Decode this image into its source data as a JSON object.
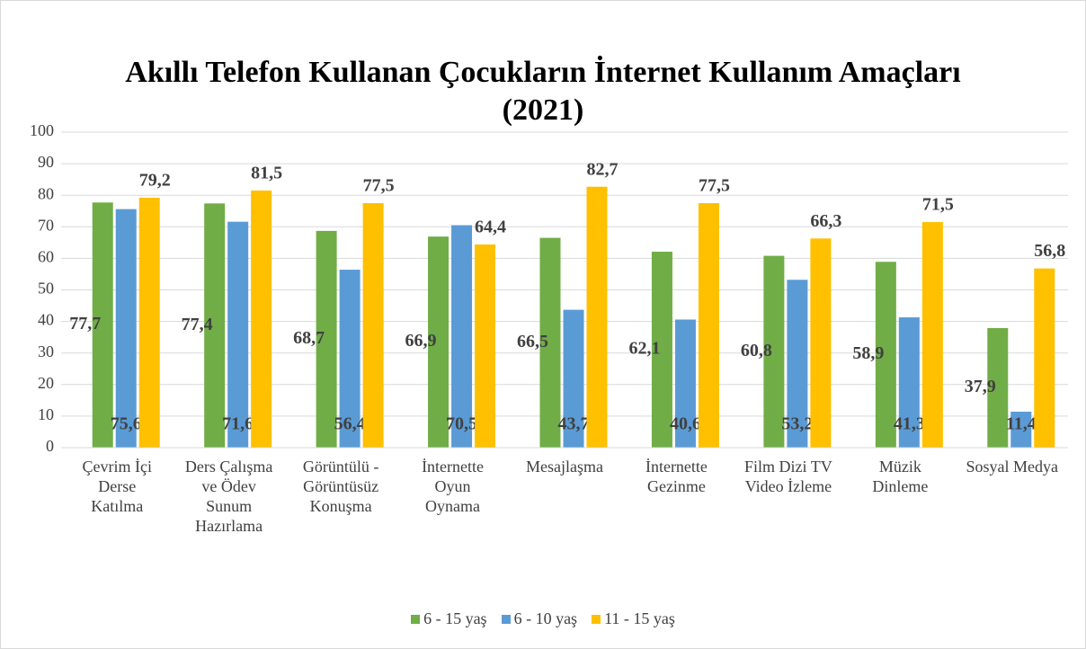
{
  "chart_data": {
    "type": "bar",
    "title": "Akıllı Telefon Kullanan Çocukların İnternet Kullanım Amaçları (2021)",
    "categories": [
      "Çevrim İçi Derse Katılma",
      "Ders Çalışma ve Ödev Sunum Hazırlama",
      "Görüntülü - Görüntüsüz Konuşma",
      "İnternette Oyun Oynama",
      "Mesajlaşma",
      "İnternette Gezinme",
      "Film Dizi TV Video İzleme",
      "Müzik Dinleme",
      "Sosyal Medya"
    ],
    "series": [
      {
        "name": "6 - 15 yaş",
        "color": "#70ad47",
        "values": [
          77.7,
          77.4,
          68.7,
          66.9,
          66.5,
          62.1,
          60.8,
          58.9,
          37.9
        ],
        "value_labels": [
          "77,7",
          "77,4",
          "68,7",
          "66,9",
          "66,5",
          "62,1",
          "60,8",
          "58,9",
          "37,9"
        ]
      },
      {
        "name": "6 - 10 yaş",
        "color": "#5b9bd5",
        "values": [
          75.6,
          71.6,
          56.4,
          70.5,
          43.7,
          40.6,
          53.2,
          41.3,
          11.4
        ],
        "value_labels": [
          "75,6",
          "71,6",
          "56,4",
          "70,5",
          "43,7",
          "40,6",
          "53,2",
          "41,3",
          "11,4"
        ]
      },
      {
        "name": "11 - 15 yaş",
        "color": "#ffc000",
        "values": [
          79.2,
          81.5,
          77.5,
          64.4,
          82.7,
          77.5,
          66.3,
          71.5,
          56.8
        ],
        "value_labels": [
          "79,2",
          "81,5",
          "77,5",
          "64,4",
          "82,7",
          "77,5",
          "66,3",
          "71,5",
          "56,8"
        ]
      }
    ],
    "ylim": [
      0,
      100
    ],
    "yticks": [
      0,
      10,
      20,
      30,
      40,
      50,
      60,
      70,
      80,
      90,
      100
    ],
    "grid": true,
    "legend": "bottom"
  }
}
